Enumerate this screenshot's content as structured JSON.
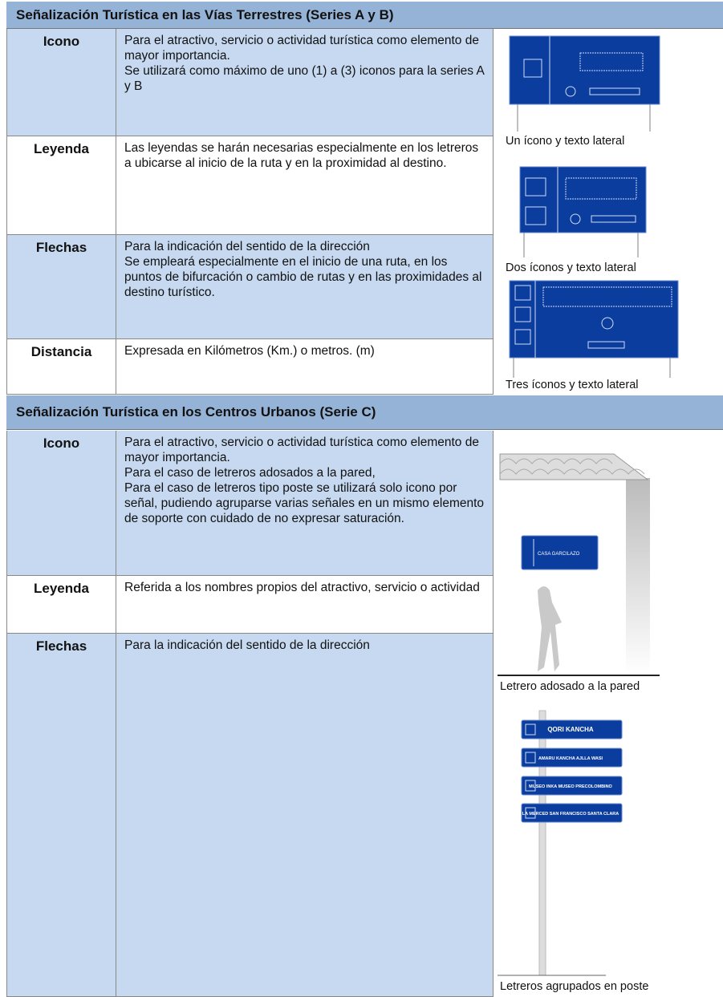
{
  "sections": [
    {
      "title": "Señalización Turística en las Vías Terrestres (Series A y B)",
      "rows": [
        {
          "label": "Icono",
          "text": [
            "Para el atractivo, servicio o actividad turística como elemento de mayor importancia.",
            "Se utilizará como máximo de uno (1) a (3) iconos para la series  A y B"
          ]
        },
        {
          "label": "Leyenda",
          "text": [
            "Las leyendas se harán necesarias especialmente en los letreros a ubicarse al inicio de la ruta y en la proximidad al destino."
          ]
        },
        {
          "label": "Flechas",
          "text": [
            "Para la indicación del sentido de la dirección",
            "Se empleará especialmente en el inicio de una ruta, en los puntos de bifurcación o cambio de rutas y en las proximidades al destino turístico."
          ]
        },
        {
          "label": "Distancia",
          "text": [
            "Expresada en Kilómetros (Km.) o metros. (m)"
          ]
        }
      ],
      "figures": [
        "Un ícono y texto lateral",
        "Dos íconos y texto lateral",
        "Tres íconos y texto lateral"
      ]
    },
    {
      "title": "Señalización Turística en los Centros Urbanos (Serie C)",
      "rows": [
        {
          "label": "Icono",
          "text": [
            "Para el atractivo, servicio o actividad turística como elemento de mayor importancia.",
            "Para el caso de letreros adosados a la pared,",
            "Para el caso de letreros tipo poste se utilizará solo icono por señal, pudiendo agruparse varias señales en un mismo elemento de soporte con cuidado de no expresar saturación."
          ]
        },
        {
          "label": "Leyenda",
          "text": [
            "Referida a los nombres propios del atractivo, servicio o actividad"
          ]
        },
        {
          "label": "Flechas",
          "text": [
            "Para la indicación del sentido de la dirección"
          ]
        }
      ],
      "figures": [
        "Letrero adosado a la pared",
        "Letreros agrupados en poste"
      ],
      "wall_sign": "CASA GARCILAZO",
      "pole_signs": [
        "QORI KANCHA",
        "AMARU KANCHA AJLLA WASI",
        "MUSEO INKA MUSEO PRECOLOMBINO",
        "LA MERCED SAN FRANCISCO SANTA CLARA"
      ]
    }
  ]
}
